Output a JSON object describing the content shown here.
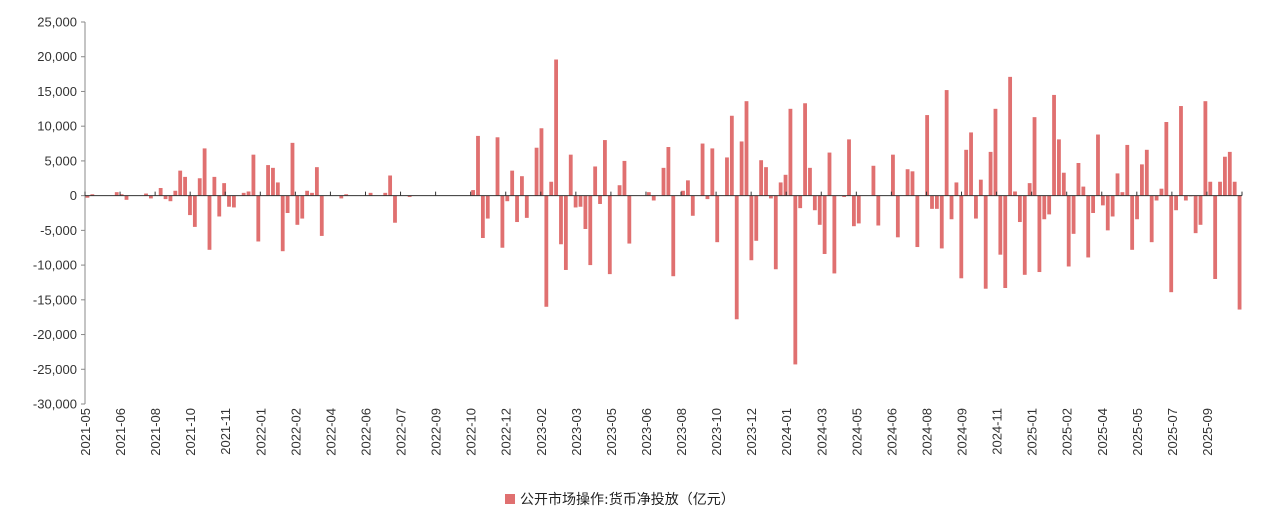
{
  "chart_data": {
    "type": "bar",
    "title": "",
    "xlabel": "",
    "ylabel": "",
    "ylim": [
      -30000,
      25000
    ],
    "yticks": [
      25000,
      20000,
      15000,
      10000,
      5000,
      0,
      -5000,
      -10000,
      -15000,
      -20000,
      -25000,
      -30000
    ],
    "ytick_labels": [
      "25,000",
      "20,000",
      "15,000",
      "10,000",
      "5,000",
      "0",
      "-5,000",
      "-10,000",
      "-15,000",
      "-20,000",
      "-25,000",
      "-30,000"
    ],
    "xtick_labels": [
      "2021-05",
      "2021-06",
      "2021-08",
      "2021-10",
      "2021-11",
      "2022-01",
      "2022-02",
      "2022-04",
      "2022-06",
      "2022-07",
      "2022-09",
      "2022-10",
      "2022-12",
      "2023-02",
      "2023-03",
      "2023-05",
      "2023-06",
      "2023-08",
      "2023-10",
      "2023-12",
      "2024-01",
      "2024-03",
      "2024-05",
      "2024-06",
      "2024-08",
      "2024-09",
      "2024-11",
      "2025-01",
      "2025-02",
      "2025-04",
      "2025-05",
      "2025-07",
      "2025-09"
    ],
    "grid": false,
    "legend_position": "bottom",
    "series": [
      {
        "name": "公开市场操作:货币净投放（亿元）",
        "color": "#e07070",
        "values": [
          -300,
          200,
          0,
          0,
          0,
          0,
          500,
          200,
          -600,
          0,
          0,
          0,
          300,
          -400,
          0,
          1100,
          -500,
          -800,
          700,
          3600,
          2700,
          -2800,
          -4500,
          2500,
          6800,
          -7800,
          2700,
          -3000,
          1800,
          -1600,
          -1700,
          0,
          400,
          600,
          5900,
          -6600,
          0,
          4400,
          4000,
          1900,
          -8000,
          -2500,
          7600,
          -4200,
          -3300,
          700,
          400,
          4100,
          -5800,
          0,
          0,
          0,
          -400,
          200,
          0,
          0,
          0,
          0,
          400,
          0,
          0,
          400,
          2900,
          -3900,
          0,
          0,
          -200,
          0,
          0,
          0,
          0,
          0,
          0,
          0,
          0,
          0,
          0,
          0,
          0,
          800,
          8600,
          -6100,
          -3300,
          0,
          8400,
          -7500,
          -800,
          3600,
          -3800,
          2800,
          -3200,
          0,
          6900,
          9700,
          -16000,
          2000,
          19600,
          -7000,
          -10700,
          5900,
          -1700,
          -1600,
          -4800,
          -10000,
          4200,
          -1200,
          8000,
          -11300,
          0,
          1500,
          5000,
          -6900,
          0,
          0,
          0,
          500,
          -700,
          0,
          4000,
          7000,
          -11600,
          0,
          700,
          2200,
          -2900,
          0,
          7500,
          -500,
          6800,
          -6700,
          0,
          5500,
          11500,
          -17800,
          7800,
          13600,
          -9300,
          -6500,
          5100,
          4100,
          -400,
          -10600,
          1900,
          3000,
          12500,
          -24300,
          -1800,
          13300,
          4000,
          -2100,
          -4200,
          -8400,
          6200,
          -11200,
          0,
          -200,
          8100,
          -4400,
          -4000,
          0,
          0,
          4300,
          -4300,
          0,
          0,
          5900,
          -6000,
          0,
          3800,
          3500,
          -7400,
          0,
          11600,
          -1900,
          -1900,
          -7600,
          15200,
          -3400,
          1900,
          -11900,
          6600,
          9100,
          -3300,
          2300,
          -13400,
          6300,
          12500,
          -8500,
          -13300,
          17100,
          600,
          -3800,
          -11400,
          1800,
          11300,
          -11000,
          -3400,
          -2700,
          14500,
          8100,
          3300,
          -10200,
          -5500,
          4700,
          1300,
          -8900,
          -2500,
          8800,
          -1400,
          -5000,
          -3000,
          3200,
          500,
          7300,
          -7800,
          -3400,
          4500,
          6600,
          -6700,
          -700,
          1000,
          10600,
          -13900,
          -2100,
          12900,
          -700,
          -100,
          -5400,
          -4200,
          13600,
          2000,
          -12000,
          2000,
          5600,
          6300,
          2000,
          -16400
        ]
      }
    ]
  }
}
